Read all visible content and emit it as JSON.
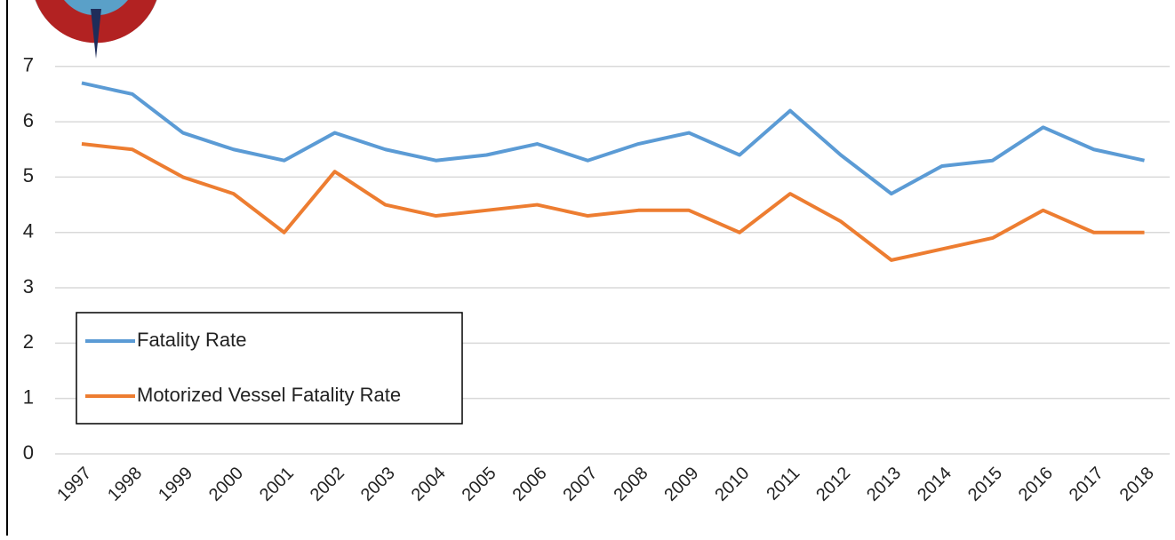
{
  "chart_data": {
    "type": "line",
    "categories": [
      "1997",
      "1998",
      "1999",
      "2000",
      "2001",
      "2002",
      "2003",
      "2004",
      "2005",
      "2006",
      "2007",
      "2008",
      "2009",
      "2010",
      "2011",
      "2012",
      "2013",
      "2014",
      "2015",
      "2016",
      "2017",
      "2018"
    ],
    "series": [
      {
        "name": "Fatality Rate",
        "color": "#5b9bd5",
        "values": [
          6.7,
          6.5,
          5.8,
          5.5,
          5.3,
          5.8,
          5.5,
          5.3,
          5.4,
          5.6,
          5.3,
          5.6,
          5.8,
          5.4,
          6.2,
          5.4,
          4.7,
          5.2,
          5.3,
          5.9,
          5.5,
          5.3
        ]
      },
      {
        "name": "Motorized Vessel Fatality Rate",
        "color": "#ed7d31",
        "values": [
          5.6,
          5.5,
          5.0,
          4.7,
          4.0,
          5.1,
          4.5,
          4.3,
          4.4,
          4.5,
          4.3,
          4.4,
          4.4,
          4.0,
          4.7,
          4.2,
          3.5,
          3.7,
          3.9,
          4.4,
          4.0,
          4.0
        ]
      }
    ],
    "ylim": [
      0,
      8.2
    ],
    "yticks": [
      0,
      1,
      2,
      3,
      4,
      5,
      6,
      7
    ],
    "grid": true,
    "legend": "lower left"
  }
}
